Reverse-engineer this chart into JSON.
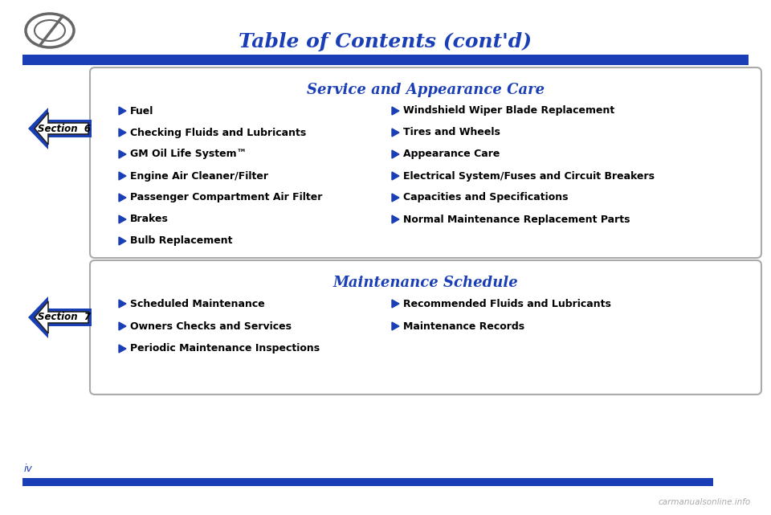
{
  "title": "Table of Contents (cont'd)",
  "title_color": "#1a3eb5",
  "title_fontsize": 18,
  "bg_color": "#ffffff",
  "header_bar_color": "#1a3eb5",
  "section6_title": "Service and Appearance Care",
  "section6_num": "6",
  "section6_left_items": [
    "Fuel",
    "Checking Fluids and Lubricants",
    "GM Oil Life System™",
    "Engine Air Cleaner/Filter",
    "Passenger Compartment Air Filter",
    "Brakes",
    "Bulb Replacement"
  ],
  "section6_right_items": [
    "Windshield Wiper Blade Replacement",
    "Tires and Wheels",
    "Appearance Care",
    "Electrical System/Fuses and Circuit Breakers",
    "Capacities and Specifications",
    "Normal Maintenance Replacement Parts"
  ],
  "section7_title": "Maintenance Schedule",
  "section7_num": "7",
  "section7_left_items": [
    "Scheduled Maintenance",
    "Owners Checks and Services",
    "Periodic Maintenance Inspections"
  ],
  "section7_right_items": [
    "Recommended Fluids and Lubricants",
    "Maintenance Records"
  ],
  "arrow_color": "#1a3eb5",
  "bullet_color": "#1a3eb5",
  "item_fontsize": 9.0,
  "section_title_fontsize": 13,
  "page_label": "iv",
  "watermark": "carmanualsonline.info",
  "box_edge_color": "#aaaaaa",
  "box_bg_color": "#ffffff"
}
